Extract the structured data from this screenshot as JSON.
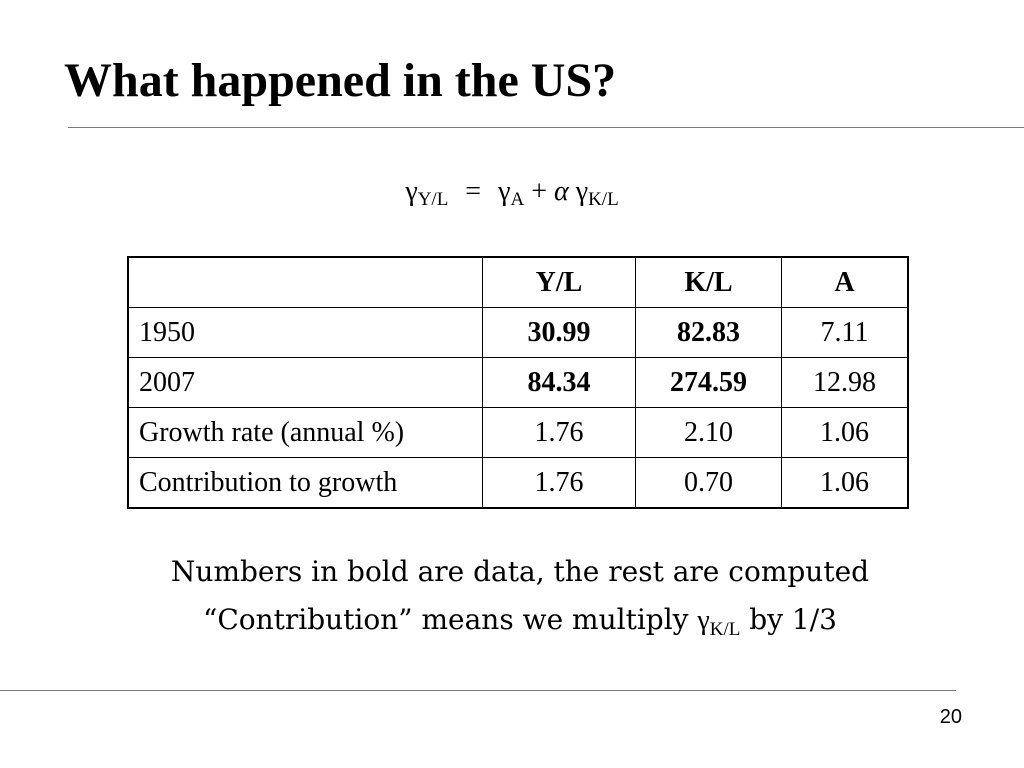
{
  "slide": {
    "title": "What happened in the US?",
    "page_number": "20"
  },
  "equation": {
    "lhs_symbol": "γ",
    "lhs_sub": "Y/L",
    "equals": "=",
    "term1_symbol": "γ",
    "term1_sub": "A",
    "plus": "+",
    "alpha": "α",
    "term2_symbol": "γ",
    "term2_sub": "K/L"
  },
  "table": {
    "headers": [
      "",
      "Y/L",
      "K/L",
      "A"
    ],
    "rows": [
      {
        "label": "1950",
        "values": [
          "30.99",
          "82.83",
          "7.11"
        ]
      },
      {
        "label": "2007",
        "values": [
          "84.34",
          "274.59",
          "12.98"
        ]
      },
      {
        "label": "Growth rate (annual %)",
        "values": [
          "1.76",
          "2.10",
          "1.06"
        ]
      },
      {
        "label": "Contribution to growth",
        "values": [
          "1.76",
          "0.70",
          "1.06"
        ]
      }
    ]
  },
  "notes": {
    "line1": "Numbers in bold are data, the rest are computed",
    "line2_prefix": "“Contribution” means we multiply ",
    "line2_symbol": "γ",
    "line2_sub": "K/L",
    "line2_suffix": " by 1/3"
  }
}
